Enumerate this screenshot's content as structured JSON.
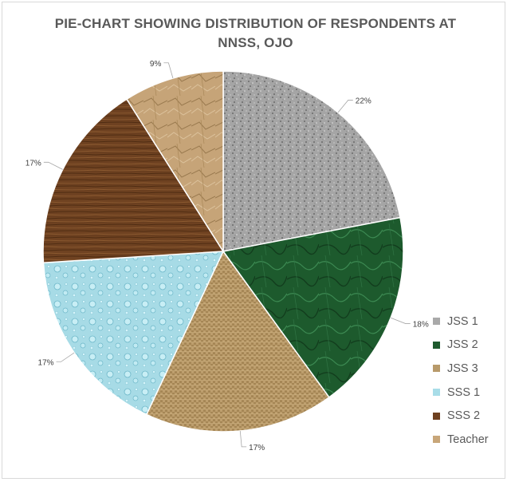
{
  "chart_data": {
    "type": "pie",
    "title": "PIE-CHART SHOWING DISTRIBUTION OF RESPONDENTS AT NNSS, OJO",
    "title_lines": [
      "PIE-CHART SHOWING DISTRIBUTION OF RESPONDENTS AT",
      "NNSS, OJO"
    ],
    "categories": [
      "JSS 1",
      "JSS 2",
      "JSS 3",
      "SSS 1",
      "SSS 2",
      "Teacher"
    ],
    "values": [
      22,
      18,
      17,
      17,
      17,
      9
    ],
    "labels": [
      "22%",
      "18%",
      "17%",
      "17%",
      "17%",
      "9%"
    ],
    "colors": [
      "#a9a9a9",
      "#1e5a2e",
      "#b89a6a",
      "#a8dde8",
      "#6e4020",
      "#c8a679"
    ],
    "legend_position": "right"
  }
}
